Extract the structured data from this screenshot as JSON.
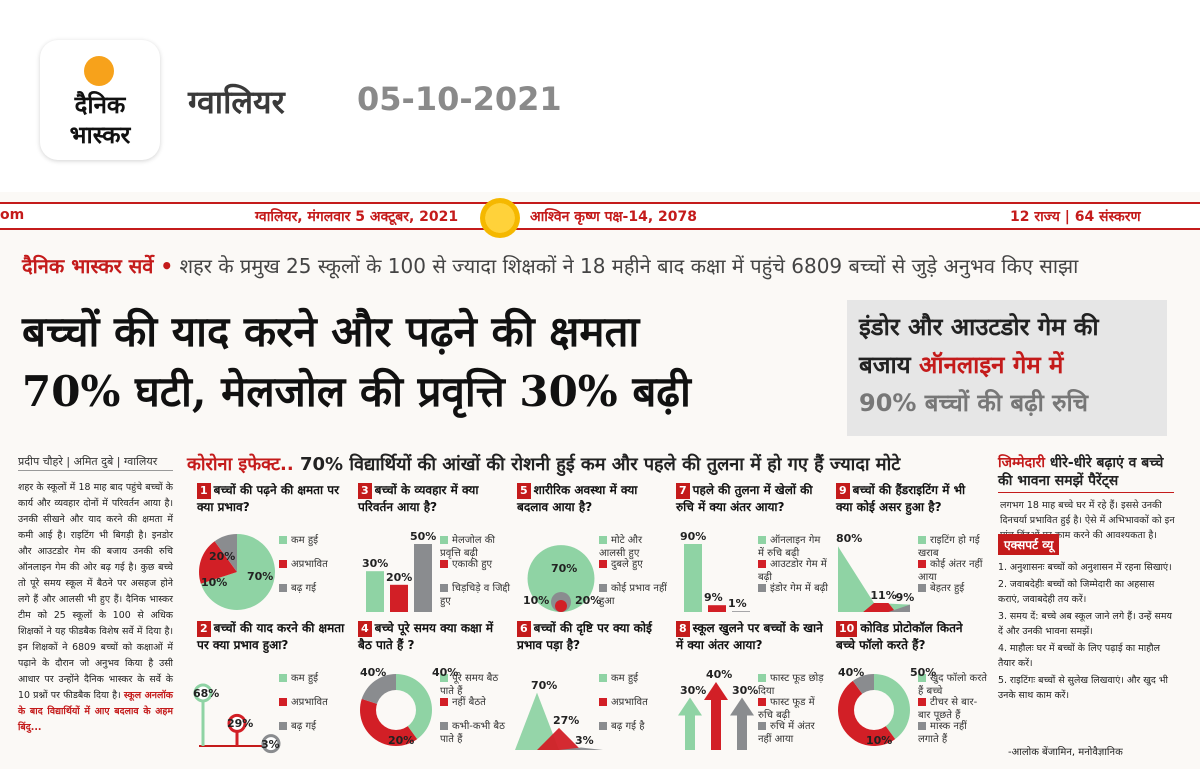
{
  "app": {
    "city": "ग्वालियर",
    "date": "05-10-2021",
    "logo_line1": "दैनिक",
    "logo_line2": "भास्कर"
  },
  "paper": {
    "topbar": {
      "edge": "om",
      "left": "ग्वालियर, मंगलवार 5 अक्टूबर, 2021",
      "mid": "आश्विन कृष्ण पक्ष-14, 2078",
      "right": "12 राज्य | 64 संस्करण"
    },
    "survey_brand": "दैनिक भास्कर सर्वे •",
    "survey_text": "शहर के प्रमुख 25 स्कूलों के 100 से ज्यादा शिक्षकों ने 18 महीने बाद कक्षा में पहुंचे 6809 बच्चों से जुड़े अनुभव किए साझा",
    "headline": [
      "बच्चों की याद करने और पढ़ने की क्षमता",
      "70% घटी, मेलजोल की प्रवृत्ति 30% बढ़ी"
    ],
    "side_box": {
      "line1": "इंडोर और आउटडोर गेम की",
      "line2a": "बजाय",
      "line2b": "ऑनलाइन गेम में",
      "line3": "90% बच्चों की बढ़ी रुचि"
    },
    "byline": "प्रदीप चौहरे | अमित दुबे | ग्वालियर",
    "left_text": "शहर के स्कूलों में 18 माह बाद पहुंचे बच्चों के कार्य और व्यवहार दोनों में परिवर्तन आया है। उनकी सीखने और याद करने की क्षमता में कमी आई है। राइटिंग भी बिगड़ी है। इनडोर और आउटडोर गेम की बजाय उनकी रुचि ऑनलाइन गेम की ओर बढ़ गई है। कुछ बच्चे तो पूरे समय स्कूल में बैठने पर असहज होने लगे हैं और आलसी भी हुए हैं। दैनिक भास्कर टीम को 25 स्कूलों के 100 से अधिक शिक्षकों ने यह फीडबैक विशेष सर्वे में दिया है। इन शिक्षकों ने 6809 बच्चों को कक्षाओं में पढ़ाने के दौरान जो अनुभव किया है उसी आधार पर उन्होंने दैनिक भास्कर के सर्वे के 10 प्रश्नों पर फीडबैक दिया है।",
    "left_bold": "स्कूल अनलॉक के बाद विद्यार्थियों में आए बदलाव के अहम बिंदु...",
    "corona_red": "कोरोना इफेक्ट..",
    "corona_text": "70% विद्यार्थियों की आंखों की रोशनी हुई कम और पहले की तुलना में हो गए हैं ज्यादा मोटे",
    "right_head_red": "जिम्मेदारी",
    "right_head_rest": "धीरे-धीरे बढ़ाएं व बच्चे की भावना समझें पैरेंट्स",
    "right_intro": "लगभग 18 माह बच्चे घर में रहे हैं। इससे उनकी दिनचर्या प्रभावित हुई है। ऐसे में अभिभावकों को इन पांच बिंदुओं पर काम करने की आवश्यकता है।",
    "expert": "एक्सपर्ट व्यू",
    "right_points": [
      "1. अनुशासनः बच्चों को अनुशासन में रहना सिखाएं।",
      "2. जवाबदेहीः बच्चों को जिम्मेदारी का अहसास कराएं, जवाबदेही तय करें।",
      "3. समय दें: बच्चे अब स्कूल जाने लगे हैं। उन्हें समय दें और उनकी भावना समझें।",
      "4. माहौलः घर में बच्चों के लिए पढ़ाई का माहौल तैयार करें।",
      "5. राइटिंगः बच्चों से सुलेख लिखवाएं। और खुद भी उनके साथ काम करें।"
    ],
    "right_sign": "-आलोक बेंजामिन, मनोवैज्ञानिक"
  },
  "chart_data": [
    {
      "type": "pie",
      "title": "बच्चों की पढ़ने की क्षमता पर क्या प्रभाव?",
      "number": "1",
      "series": [
        {
          "values": [
            70,
            20,
            10
          ],
          "labels": [
            "कम हुई",
            "अप्रभावित",
            "बढ़ गई"
          ]
        }
      ]
    },
    {
      "type": "lollipop",
      "title": "बच्चों की याद करने की क्षमता पर क्या प्रभाव हुआ?",
      "number": "2",
      "series": [
        {
          "values": [
            68,
            29,
            3
          ],
          "labels": [
            "कम हुई",
            "अप्रभावित",
            "बढ़ गई"
          ]
        }
      ]
    },
    {
      "type": "bar",
      "title": "बच्चों के व्यवहार में क्या परिवर्तन आया है?",
      "number": "3",
      "series": [
        {
          "values": [
            30,
            20,
            50
          ],
          "labels": [
            "मेलजोल की प्रवृत्ति बढ़ी",
            "एकाकी हुए",
            "चिड़चिड़े व जिद्दी हुए"
          ]
        }
      ]
    },
    {
      "type": "donut",
      "title": "बच्चे पूरे समय क्या कक्षा में बैठ पाते हैं ?",
      "number": "4",
      "series": [
        {
          "values": [
            40,
            40,
            20
          ],
          "labels": [
            "पूरे समय बैठ पाते हैं",
            "नहीं बैठते",
            "कभी-कभी बैठ पाते हैं"
          ]
        }
      ]
    },
    {
      "type": "bubble",
      "title": "शारीरिक अवस्था में क्या बदलाव आया है?",
      "number": "5",
      "series": [
        {
          "values": [
            70,
            20,
            10
          ],
          "labels": [
            "मोटे और आलसी हुए",
            "दुबले हुए",
            "कोई प्रभाव नहीं हुआ"
          ]
        }
      ]
    },
    {
      "type": "triangle",
      "title": "बच्चों की दृष्टि पर क्या कोई प्रभाव पड़ा है?",
      "number": "6",
      "series": [
        {
          "values": [
            70,
            27,
            3
          ],
          "labels": [
            "कम हुई",
            "अप्रभावित",
            "बढ़ गई है"
          ]
        }
      ]
    },
    {
      "type": "bar",
      "title": "पहले की तुलना में खेलों की रुचि में क्या अंतर आया?",
      "number": "7",
      "series": [
        {
          "values": [
            90,
            9,
            1
          ],
          "labels": [
            "ऑनलाइन गेम में रुचि बढ़ी",
            "आउटडोर गेम में बढ़ी",
            "इंडोर गेम में बढ़ी"
          ]
        }
      ]
    },
    {
      "type": "arrow",
      "title": "स्कूल खुलने पर बच्चों के खाने में क्या अंतर आया?",
      "number": "8",
      "series": [
        {
          "values": [
            30,
            40,
            30
          ],
          "labels": [
            "फास्ट फूड छोड़ दिया",
            "फास्ट फूड में रुचि बढ़ी",
            "रुचि में अंतर नहीं आया"
          ]
        }
      ]
    },
    {
      "type": "area",
      "title": "बच्चों की हैंडराइटिंग में भी क्या कोई असर हुआ है?",
      "number": "9",
      "series": [
        {
          "values": [
            80,
            11,
            9
          ],
          "labels": [
            "राइटिंग हो गई खराब",
            "कोई अंतर नहीं आया",
            "बेहतर हुई"
          ]
        }
      ]
    },
    {
      "type": "donut",
      "title": "कोविड प्रोटोकॉल कितने बच्चे फॉलो करते हैं?",
      "number": "10",
      "series": [
        {
          "values": [
            40,
            50,
            10
          ],
          "labels": [
            "खुद फॉलो करते हैं बच्चे",
            "टीचर से बार-बार पूछते हैं",
            "मास्क नहीं लगाते हैं"
          ]
        }
      ]
    }
  ]
}
